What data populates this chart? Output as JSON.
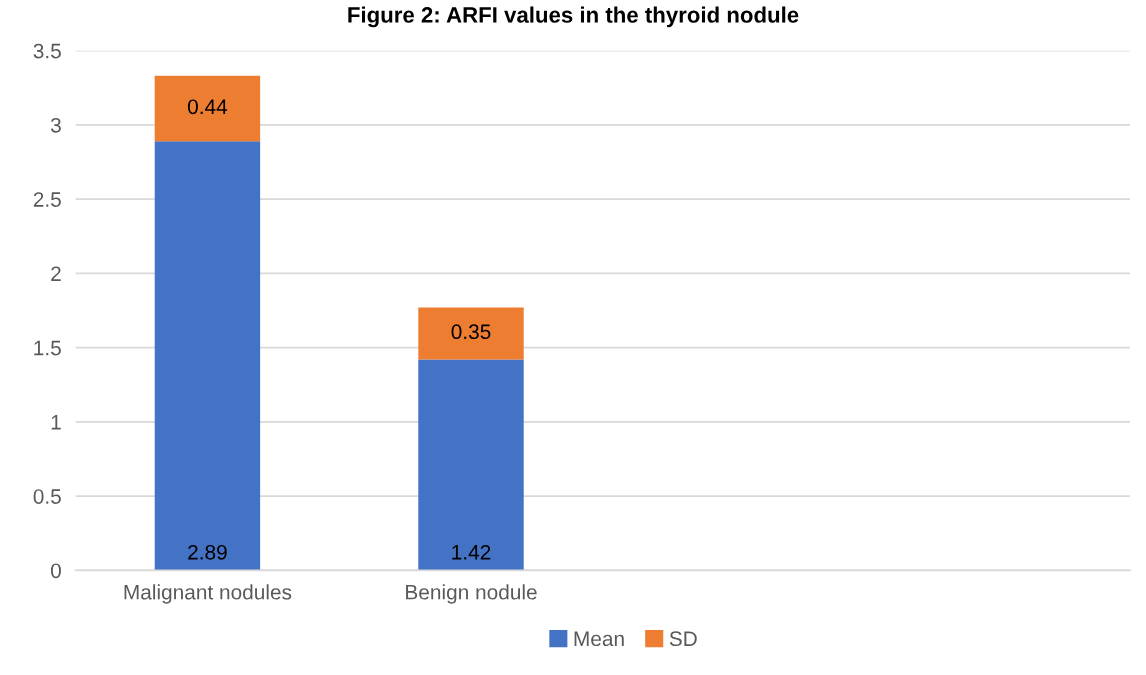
{
  "chart_data": {
    "type": "bar",
    "title": "Figure 2: ARFI values in the thyroid nodule",
    "categories": [
      "Malignant nodules",
      "Benign nodule",
      null,
      null
    ],
    "stacked": true,
    "series": [
      {
        "name": "Mean",
        "color": "#4472c4",
        "values": [
          2.89,
          1.42,
          null,
          null
        ]
      },
      {
        "name": "SD",
        "color": "#ed7d31",
        "values": [
          0.44,
          0.35,
          null,
          null
        ]
      }
    ],
    "ylim": [
      0,
      3.5
    ],
    "yticks": [
      0,
      0.5,
      1,
      1.5,
      2,
      2.5,
      3,
      3.5
    ],
    "grid": "y",
    "legend": "bottom",
    "data_labels": true
  }
}
